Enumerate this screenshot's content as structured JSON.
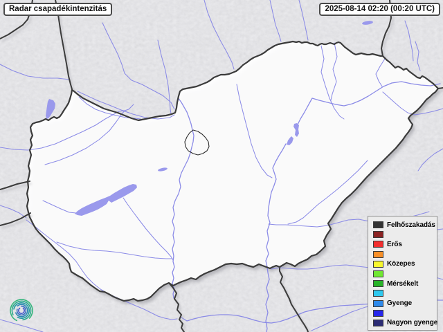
{
  "header": {
    "title": "Radar csapadékintenzitás",
    "timestamp": "2025-08-14 02:20 (00:20 UTC)"
  },
  "legend": {
    "items": [
      {
        "label": "Felhőszakadás",
        "color": "#333333"
      },
      {
        "label": "",
        "color": "#8b2323"
      },
      {
        "label": "Erős",
        "color": "#f22e2e"
      },
      {
        "label": "",
        "color": "#f78f29"
      },
      {
        "label": "Közepes",
        "color": "#f7f72e"
      },
      {
        "label": "",
        "color": "#70e832"
      },
      {
        "label": "Mérsékelt",
        "color": "#27b327"
      },
      {
        "label": "",
        "color": "#2ec8ee"
      },
      {
        "label": "Gyenge",
        "color": "#2e89ea"
      },
      {
        "label": "",
        "color": "#2727ec"
      },
      {
        "label": "Nagyon gyenge",
        "color": "#2c2c74"
      }
    ]
  },
  "map": {
    "colors": {
      "outside_land": "#d6d6d9",
      "hungary_fill": "#ffffff",
      "border": "#3b3b3b",
      "river": "#8585e6",
      "lake": "#9a99ec"
    },
    "logo": {
      "icon": "hungaromet-spiral-logo",
      "colors": [
        "#35b57c",
        "#2aa98c",
        "#219aa0",
        "#2a86b2",
        "#3a6ec2",
        "#4456c8"
      ]
    }
  }
}
